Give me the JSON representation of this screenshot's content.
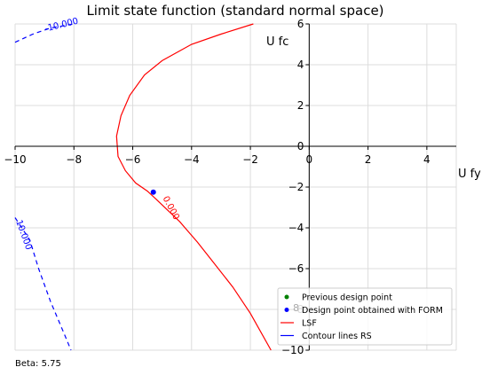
{
  "chart_data": {
    "type": "line",
    "title": "Limit state function (standard normal space)",
    "xlabel": "U fy",
    "ylabel": "U fc",
    "xlim": [
      -10,
      5
    ],
    "ylim": [
      -10,
      6
    ],
    "x_ticks": [
      -10,
      -8,
      -6,
      -4,
      -2,
      0,
      2,
      4
    ],
    "y_ticks": [
      -10,
      -8,
      -6,
      -4,
      -2,
      0,
      2,
      4,
      6
    ],
    "grid": true,
    "legend_position": "bottom-right",
    "legend": [
      {
        "label": "Previous design point",
        "marker": "dot",
        "color": "#008000"
      },
      {
        "label": "Design point obtained with FORM",
        "marker": "dot",
        "color": "#0000ff"
      },
      {
        "label": "LSF",
        "marker": "line",
        "color": "#ff0000"
      },
      {
        "label": "Contour lines RS",
        "marker": "line",
        "color": "#0000ff"
      }
    ],
    "series": [
      {
        "name": "LSF",
        "color": "#ff0000",
        "style": "solid",
        "points": [
          [
            -1.9,
            6
          ],
          [
            -3,
            5.5
          ],
          [
            -4,
            5
          ],
          [
            -5,
            4.2
          ],
          [
            -5.6,
            3.5
          ],
          [
            -6.1,
            2.5
          ],
          [
            -6.4,
            1.5
          ],
          [
            -6.55,
            0.5
          ],
          [
            -6.5,
            -0.5
          ],
          [
            -6.25,
            -1.2
          ],
          [
            -5.9,
            -1.8
          ],
          [
            -5.5,
            -2.2
          ],
          [
            -5.2,
            -2.6
          ],
          [
            -4.4,
            -3.7
          ],
          [
            -3.8,
            -4.7
          ],
          [
            -3.2,
            -5.8
          ],
          [
            -2.6,
            -6.9
          ],
          [
            -2.0,
            -8.2
          ],
          [
            -1.3,
            -10
          ]
        ],
        "contour_label": "0.000"
      },
      {
        "name": "Contour lines RS",
        "color": "#0000ff",
        "style": "dashed",
        "points": [
          [
            -10,
            5.1
          ],
          [
            -9.4,
            5.5
          ],
          [
            -8.8,
            5.8
          ],
          [
            -8,
            6
          ]
        ],
        "contour_label": "-10.000"
      },
      {
        "name": "Contour lines RS",
        "color": "#0000ff",
        "style": "dashed",
        "points": [
          [
            -10,
            -3.5
          ],
          [
            -9.5,
            -4.6
          ],
          [
            -9.2,
            -6
          ],
          [
            -8.8,
            -7.6
          ],
          [
            -8.3,
            -9.3
          ],
          [
            -8.1,
            -10
          ]
        ],
        "contour_label": "10.000"
      }
    ],
    "points": [
      {
        "name": "Design point obtained with FORM",
        "x": -5.3,
        "y": -2.25,
        "color": "#0000ff"
      }
    ],
    "annotations": {
      "beta": "Beta: 5.75",
      "y_tick_partial": "8"
    }
  }
}
